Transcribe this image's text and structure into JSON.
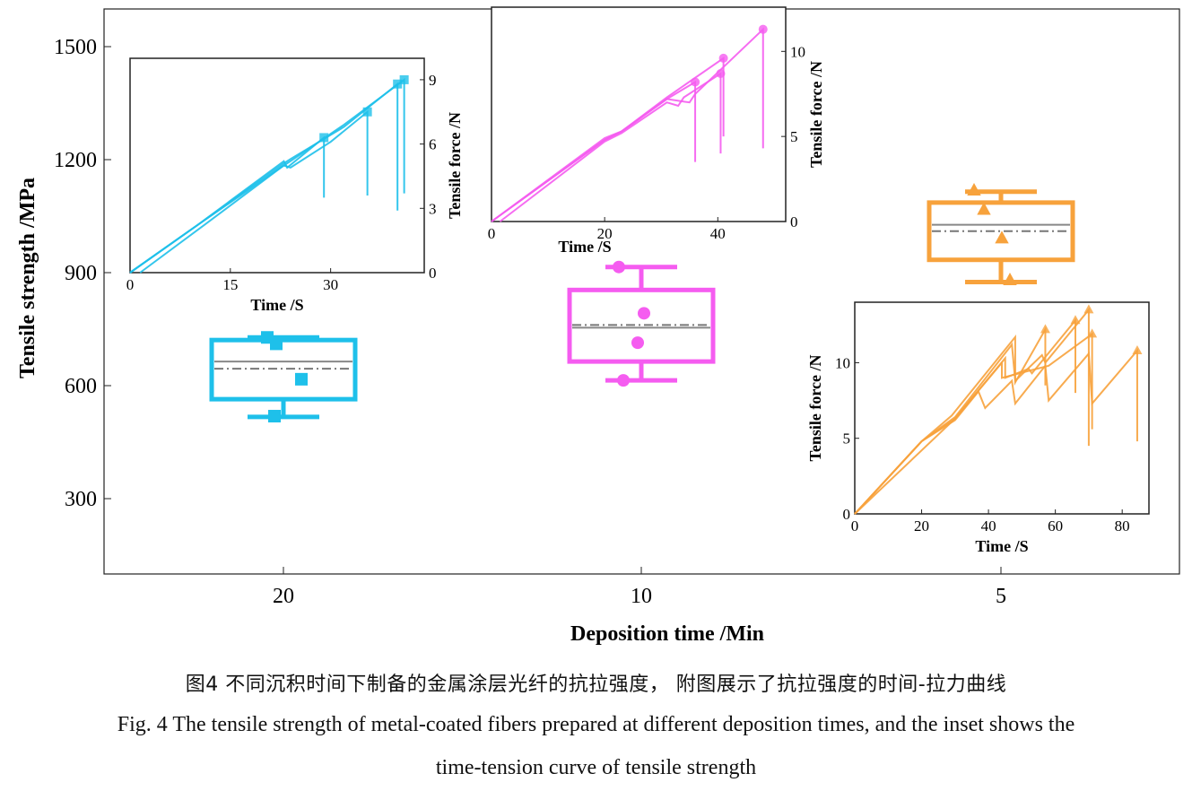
{
  "chart_data": [
    {
      "type": "box",
      "xlabel": "Deposition time /Min",
      "ylabel": "Tensile strength /MPa",
      "ylim": [
        100,
        1600
      ],
      "yticks": [
        300,
        600,
        900,
        1200,
        1500
      ],
      "categories": [
        "20",
        "10",
        "5"
      ],
      "grid": false,
      "colors": [
        "#1ec0ea",
        "#f55cf0",
        "#f7a23c"
      ],
      "markers": [
        "square",
        "circle",
        "triangle"
      ],
      "boxes": [
        {
          "category": "20",
          "whisker_low": 517,
          "q1": 564,
          "median": 664,
          "mean": 645,
          "q3": 721,
          "whisker_high": 728,
          "points": [
            728,
            711,
            617,
            519
          ]
        },
        {
          "category": "10",
          "whisker_low": 614,
          "q1": 664,
          "median": 754,
          "mean": 761,
          "q3": 854,
          "whisker_high": 915,
          "points": [
            915,
            792,
            714,
            614
          ]
        },
        {
          "category": "5",
          "whisker_low": 875,
          "q1": 934,
          "median": 1027,
          "mean": 1010,
          "q3": 1086,
          "whisker_high": 1115,
          "points": [
            1118,
            1067,
            991,
            880
          ]
        }
      ]
    },
    {
      "type": "line",
      "inset_for": "20",
      "xlabel": "Time /S",
      "ylabel": "Tensile force /N",
      "xlim": [
        0,
        44
      ],
      "ylim": [
        0,
        10
      ],
      "xticks": [
        0,
        15,
        30
      ],
      "yticks": [
        0,
        3,
        6,
        9
      ],
      "color": "#1ec0ea",
      "marker": "square",
      "series": [
        {
          "x": [
            0,
            10,
            23,
            23.5,
            29,
            29
          ],
          "y": [
            0,
            2.2,
            5.2,
            4.9,
            6.3,
            3.5
          ]
        },
        {
          "x": [
            0,
            10,
            23,
            24,
            30,
            35.5,
            35.5
          ],
          "y": [
            0,
            2.2,
            5.0,
            4.9,
            6.1,
            7.5,
            3.6
          ]
        },
        {
          "x": [
            0,
            10,
            23,
            24,
            32,
            40,
            40
          ],
          "y": [
            0,
            2.2,
            5.1,
            5.3,
            6.8,
            8.8,
            2.9
          ]
        },
        {
          "x": [
            1.5,
            11,
            23,
            24,
            32,
            41,
            41
          ],
          "y": [
            0,
            2.2,
            5.0,
            5.2,
            6.9,
            9.0,
            3.7
          ]
        }
      ]
    },
    {
      "type": "line",
      "inset_for": "10",
      "xlabel": "Time /S",
      "ylabel": "Tensile force /N",
      "xlim": [
        0,
        52
      ],
      "ylim": [
        0,
        12.6
      ],
      "xticks": [
        0,
        20,
        40
      ],
      "yticks": [
        0,
        5,
        10
      ],
      "color": "#f55cf0",
      "marker": "circle",
      "series": [
        {
          "x": [
            0,
            20,
            23,
            31,
            36,
            36
          ],
          "y": [
            0,
            4.8,
            5.3,
            7.2,
            8.2,
            3.5
          ]
        },
        {
          "x": [
            1.5,
            20,
            23,
            31,
            33,
            34,
            40.5,
            40.5
          ],
          "y": [
            0,
            4.7,
            5.2,
            7.0,
            6.8,
            7.3,
            8.7,
            4.0
          ]
        },
        {
          "x": [
            0,
            20,
            23,
            31,
            41,
            41
          ],
          "y": [
            0,
            4.9,
            5.3,
            7.3,
            9.6,
            5.0
          ]
        },
        {
          "x": [
            0,
            20,
            23,
            31,
            35,
            36,
            48,
            48
          ],
          "y": [
            0,
            4.8,
            5.3,
            7.2,
            7.0,
            7.5,
            11.3,
            4.3
          ]
        }
      ]
    },
    {
      "type": "line",
      "inset_for": "5",
      "xlabel": "Time /S",
      "ylabel": "Tensile force /N",
      "xlim": [
        0,
        88
      ],
      "ylim": [
        0,
        14
      ],
      "xticks": [
        0,
        20,
        40,
        60,
        80
      ],
      "yticks": [
        0,
        5,
        10
      ],
      "color": "#f7a23c",
      "marker": "triangle",
      "series": [
        {
          "x": [
            0,
            20,
            29,
            48,
            48,
            57,
            57
          ],
          "y": [
            0,
            4.8,
            6.5,
            11.7,
            8.7,
            12.2,
            8.5
          ]
        },
        {
          "x": [
            0,
            20,
            30,
            45,
            45,
            52,
            53,
            66,
            66
          ],
          "y": [
            0,
            4.8,
            6.3,
            10.3,
            9.0,
            9.6,
            9.3,
            12.8,
            8.0
          ]
        },
        {
          "x": [
            0,
            20,
            30,
            47,
            48,
            56,
            57,
            70,
            70
          ],
          "y": [
            0,
            4.8,
            6.4,
            11.2,
            8.8,
            10.5,
            10.0,
            13.5,
            4.5
          ]
        },
        {
          "x": [
            0,
            20,
            30,
            37,
            39,
            47,
            48,
            57,
            58,
            70,
            71,
            84.5,
            84.5
          ],
          "y": [
            0,
            4.8,
            6.2,
            8.1,
            7.0,
            8.8,
            7.3,
            9.8,
            7.5,
            10.6,
            7.3,
            10.8,
            4.8
          ]
        },
        {
          "x": [
            0,
            30,
            44,
            44,
            58,
            71,
            71
          ],
          "y": [
            0,
            6.3,
            10.0,
            9.0,
            9.8,
            11.9,
            5.6
          ]
        }
      ]
    }
  ],
  "caption": {
    "cn": "图4  不同沉积时间下制备的金属涂层光纤的抗拉强度， 附图展示了抗拉强度的时间-拉力曲线",
    "en_line1": "Fig. 4 The tensile strength of metal-coated fibers prepared at different deposition times, and the inset shows the",
    "en_line2": "time-tension curve of tensile strength"
  }
}
